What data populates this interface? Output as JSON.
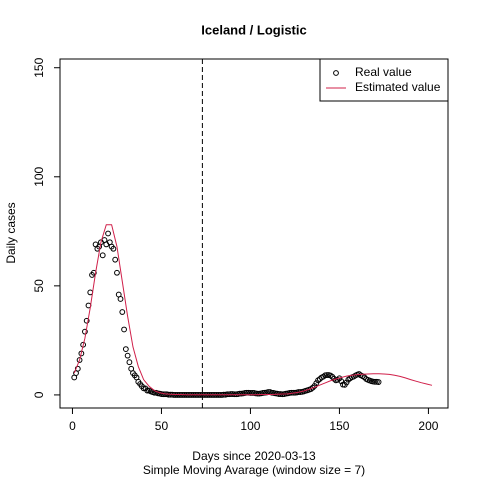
{
  "chart_data": {
    "type": "scatter-line",
    "title": "Iceland / Logistic",
    "xlabel": "Days since 2020-03-13",
    "sublabel": "Simple Moving Avarage (window size = 7)",
    "ylabel": "Daily cases",
    "xlim": [
      -7,
      211
    ],
    "ylim": [
      -6,
      154
    ],
    "xticks": [
      0,
      50,
      100,
      150,
      200
    ],
    "yticks": [
      0,
      50,
      100,
      150
    ],
    "vline": 73,
    "legend": "topright",
    "series": [
      {
        "name": "Real value",
        "color": "#000000",
        "mark": "points",
        "x": [
          1,
          2,
          3,
          4,
          5,
          6,
          7,
          8,
          9,
          10,
          11,
          12,
          13,
          14,
          15,
          16,
          17,
          18,
          19,
          20,
          21,
          22,
          23,
          24,
          25,
          26,
          27,
          28,
          29,
          30,
          31,
          32,
          33,
          34,
          35,
          36,
          37,
          38,
          39,
          40,
          41,
          42,
          43,
          44,
          45,
          46,
          47,
          48,
          49,
          50,
          51,
          52,
          53,
          54,
          55,
          56,
          57,
          58,
          59,
          60,
          61,
          62,
          63,
          64,
          65,
          66,
          67,
          68,
          69,
          70,
          71,
          72,
          73,
          74,
          75,
          76,
          77,
          78,
          79,
          80,
          81,
          82,
          83,
          84,
          85,
          86,
          87,
          88,
          89,
          90,
          91,
          92,
          93,
          94,
          95,
          96,
          97,
          98,
          99,
          100,
          101,
          102,
          103,
          104,
          105,
          106,
          107,
          108,
          109,
          110,
          111,
          112,
          113,
          114,
          115,
          116,
          117,
          118,
          119,
          120,
          121,
          122,
          123,
          124,
          125,
          126,
          127,
          128,
          129,
          130,
          131,
          132,
          133,
          134,
          135,
          136,
          137,
          138,
          139,
          140,
          141,
          142,
          143,
          144,
          145,
          146,
          147,
          148,
          149,
          150,
          151,
          152,
          153,
          154,
          155,
          156,
          157,
          158,
          159,
          160,
          161,
          162,
          163,
          164,
          165,
          166,
          167,
          168,
          169,
          170,
          171,
          172
        ],
        "values": [
          8,
          10,
          12,
          16,
          19,
          23,
          29,
          34,
          41,
          47,
          55,
          56,
          69,
          67,
          68,
          70,
          64,
          71,
          69,
          74,
          70,
          68,
          67,
          62,
          56,
          46,
          44,
          38,
          30,
          21,
          18,
          15,
          12,
          10,
          9,
          8,
          6,
          5,
          4,
          3,
          3,
          2,
          2,
          1.6,
          1.3,
          1,
          1,
          0.7,
          0.6,
          0.4,
          0.3,
          0.3,
          0.3,
          0.1,
          0.1,
          0.1,
          0,
          0,
          0,
          0,
          0,
          0,
          0,
          0,
          0,
          0,
          0,
          0,
          0,
          0,
          0,
          0,
          0,
          0,
          0,
          0,
          0,
          0,
          0,
          0,
          0,
          0,
          0,
          0,
          0.1,
          0.1,
          0.3,
          0.3,
          0.4,
          0.4,
          0.3,
          0.3,
          0.4,
          0.6,
          0.6,
          0.7,
          0.9,
          1,
          1,
          0.9,
          0.9,
          0.9,
          0.7,
          0.6,
          0.6,
          0.7,
          0.9,
          1,
          1.1,
          1.3,
          1.3,
          1,
          0.9,
          0.7,
          0.6,
          0.4,
          0.4,
          0.3,
          0.4,
          0.6,
          0.7,
          0.9,
          1,
          1,
          1,
          1.1,
          1.3,
          1.3,
          1.4,
          1.6,
          1.9,
          2.1,
          2.4,
          2.7,
          3.3,
          4.1,
          5.4,
          6.7,
          7.3,
          8,
          8.4,
          9,
          9.1,
          9.1,
          8.9,
          8.3,
          7.4,
          6.7,
          6.9,
          7.6,
          6.3,
          4.7,
          4.6,
          5.7,
          7,
          7.6,
          8.1,
          8.4,
          8.9,
          9.3,
          9.6,
          9,
          8.6,
          8.1,
          7.3,
          6.9,
          6.6,
          6.3,
          6.1,
          6,
          6,
          5.9
        ]
      },
      {
        "name": "Estimated value",
        "color": "#d0204a",
        "mark": "line",
        "x": [
          1,
          4,
          7,
          10,
          13,
          16,
          19,
          22,
          25,
          28,
          31,
          34,
          37,
          40,
          43,
          46,
          49,
          52,
          55,
          58,
          61,
          64,
          67,
          70,
          73,
          76,
          79,
          82,
          85,
          88,
          91,
          94,
          97,
          100,
          103,
          106,
          109,
          112,
          115,
          118,
          121,
          124,
          127,
          130,
          133,
          136,
          139,
          142,
          145,
          148,
          151,
          154,
          157,
          160,
          163,
          166,
          169,
          172,
          175,
          178,
          181,
          184,
          187,
          190,
          193,
          196,
          199,
          202
        ],
        "values": [
          10,
          16,
          26,
          40,
          56,
          70,
          78,
          78,
          68,
          52,
          36,
          22,
          13,
          7,
          4,
          2,
          1,
          0.5,
          0.3,
          0.2,
          0.2,
          0.1,
          0.1,
          0.1,
          0.1,
          0.1,
          0.1,
          0.1,
          0.1,
          0.1,
          0.1,
          0.1,
          0.1,
          0.1,
          0.1,
          0.2,
          0.2,
          0.2,
          0.3,
          0.4,
          0.5,
          0.8,
          1.2,
          1.8,
          2.6,
          3.5,
          4.5,
          5.5,
          6.5,
          7.3,
          8,
          8.6,
          9,
          9.3,
          9.5,
          9.6,
          9.7,
          9.7,
          9.6,
          9.4,
          9,
          8.5,
          7.8,
          7,
          6.3,
          5.6,
          5,
          4.4
        ]
      }
    ]
  }
}
